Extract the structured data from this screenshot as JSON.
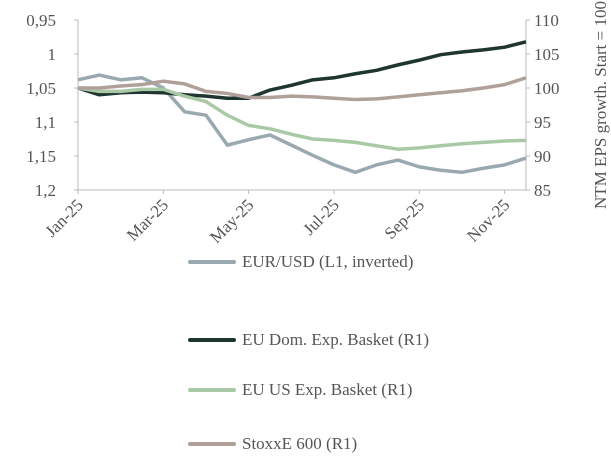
{
  "chart_data": {
    "type": "line",
    "categories": [
      "Jan-25",
      null,
      null,
      null,
      "Mar-25",
      null,
      null,
      null,
      "May-25",
      null,
      null,
      null,
      "Jul-25",
      null,
      null,
      null,
      "Sep-25",
      null,
      null,
      null,
      "Nov-25",
      null
    ],
    "y_inverted": true,
    "ylim": [
      0.95,
      1.2
    ],
    "yticks": [
      {
        "value": 0.95,
        "label": "0,95"
      },
      1,
      {
        "value": 1.05,
        "label": "1,05"
      },
      {
        "value": 1.1,
        "label": "1,1"
      },
      {
        "value": 1.15,
        "label": "1,15"
      },
      {
        "value": 1.2,
        "label": "1,2"
      }
    ],
    "y2lim": [
      85,
      110
    ],
    "y2ticks": [
      85,
      90,
      95,
      100,
      105,
      110
    ],
    "y2label": "NTM EPS growth. Start = 100",
    "series": [
      {
        "name": "EUR/USD  (L1, inverted)",
        "color": "#9aa8b0",
        "axis": "y",
        "values": [
          1.038,
          1.031,
          1.038,
          1.035,
          1.05,
          1.085,
          1.09,
          1.134,
          1.126,
          1.119,
          1.134,
          1.149,
          1.163,
          1.174,
          1.163,
          1.156,
          1.166,
          1.171,
          1.174,
          1.168,
          1.163,
          1.153
        ]
      },
      {
        "name": "EU Dom. Exp. Basket (R1)",
        "color": "#1e3530",
        "axis": "y2",
        "values": [
          100,
          99,
          99.3,
          99.4,
          99.3,
          99,
          98.8,
          98.5,
          98.5,
          99.7,
          100.4,
          101.2,
          101.5,
          102.1,
          102.6,
          103.4,
          104.1,
          104.9,
          105.3,
          105.6,
          106,
          106.8
        ]
      },
      {
        "name": "EU US  Exp. Basket (R1)",
        "color": "#a9c9a6",
        "axis": "y2",
        "values": [
          100,
          99.5,
          99.5,
          99.8,
          99.8,
          98.8,
          98,
          96,
          94.5,
          94,
          93.2,
          92.5,
          92.3,
          92,
          91.5,
          91,
          91.2,
          91.5,
          91.8,
          92,
          92.2,
          92.3
        ]
      },
      {
        "name": "StoxxE 600 (R1)",
        "color": "#b0a09a",
        "axis": "y2",
        "values": [
          100,
          100,
          100.3,
          100.5,
          101,
          100.6,
          99.5,
          99.2,
          98.6,
          98.6,
          98.8,
          98.7,
          98.5,
          98.3,
          98.4,
          98.7,
          99,
          99.3,
          99.6,
          100,
          100.5,
          101.5
        ]
      }
    ]
  }
}
